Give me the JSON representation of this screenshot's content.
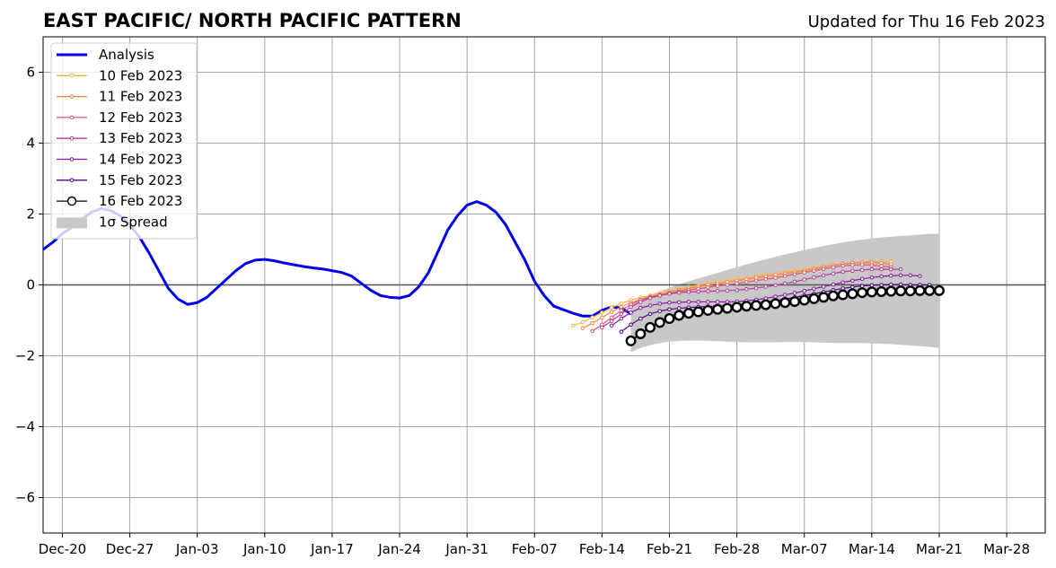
{
  "chart_data": {
    "type": "line",
    "title": "EAST PACIFIC/ NORTH PACIFIC PATTERN",
    "updated_label": "Updated for Thu 16 Feb 2023",
    "xlabel": "",
    "ylabel": "",
    "x_start_date": "2022-12-18",
    "x_end_date": "2023-04-01",
    "ylim": [
      -7,
      7
    ],
    "x_ticks": [
      {
        "date": "2022-12-20",
        "label": "Dec-20"
      },
      {
        "date": "2022-12-27",
        "label": "Dec-27"
      },
      {
        "date": "2023-01-03",
        "label": "Jan-03"
      },
      {
        "date": "2023-01-10",
        "label": "Jan-10"
      },
      {
        "date": "2023-01-17",
        "label": "Jan-17"
      },
      {
        "date": "2023-01-24",
        "label": "Jan-24"
      },
      {
        "date": "2023-01-31",
        "label": "Jan-31"
      },
      {
        "date": "2023-02-07",
        "label": "Feb-07"
      },
      {
        "date": "2023-02-14",
        "label": "Feb-14"
      },
      {
        "date": "2023-02-21",
        "label": "Feb-21"
      },
      {
        "date": "2023-02-28",
        "label": "Feb-28"
      },
      {
        "date": "2023-03-07",
        "label": "Mar-07"
      },
      {
        "date": "2023-03-14",
        "label": "Mar-14"
      },
      {
        "date": "2023-03-21",
        "label": "Mar-21"
      },
      {
        "date": "2023-03-28",
        "label": "Mar-28"
      }
    ],
    "y_ticks": [
      {
        "value": 6,
        "label": "6"
      },
      {
        "value": 4,
        "label": "4"
      },
      {
        "value": 2,
        "label": "2"
      },
      {
        "value": 0,
        "label": "0"
      },
      {
        "value": -2,
        "label": "−2"
      },
      {
        "value": -4,
        "label": "−4"
      },
      {
        "value": -6,
        "label": "−6"
      }
    ],
    "grid": true,
    "zero_line": true,
    "legend": {
      "placement": "top-left"
    },
    "analysis": {
      "name": "Analysis",
      "color": "#0000ee",
      "start_date": "2022-12-18",
      "values": [
        1.0,
        1.2,
        1.45,
        1.62,
        1.85,
        2.05,
        2.15,
        2.1,
        1.95,
        1.7,
        1.35,
        0.9,
        0.4,
        -0.1,
        -0.4,
        -0.55,
        -0.5,
        -0.35,
        -0.1,
        0.15,
        0.4,
        0.6,
        0.7,
        0.72,
        0.68,
        0.62,
        0.57,
        0.52,
        0.48,
        0.45,
        0.4,
        0.35,
        0.25,
        0.05,
        -0.15,
        -0.3,
        -0.35,
        -0.37,
        -0.3,
        -0.05,
        0.35,
        0.95,
        1.55,
        1.95,
        2.25,
        2.35,
        2.25,
        2.05,
        1.7,
        1.2,
        0.7,
        0.1,
        -0.3,
        -0.6,
        -0.7,
        -0.8,
        -0.88,
        -0.88,
        -0.72,
        -0.62,
        -0.65,
        -0.82
      ]
    },
    "forecasts": [
      {
        "name": "10 Feb 2023",
        "color": "#fbb33e",
        "start_date": "2023-02-11",
        "values": [
          -1.15,
          -1.05,
          -0.92,
          -0.78,
          -0.64,
          -0.52,
          -0.43,
          -0.36,
          -0.3,
          -0.24,
          -0.18,
          -0.12,
          -0.06,
          -0.01,
          0.04,
          0.08,
          0.12,
          0.16,
          0.2,
          0.24,
          0.28,
          0.32,
          0.36,
          0.4,
          0.44,
          0.48,
          0.52,
          0.56,
          0.6,
          0.63,
          0.65,
          0.66,
          0.66,
          0.65
        ]
      },
      {
        "name": "11 Feb 2023",
        "color": "#f5824b",
        "start_date": "2023-02-12",
        "values": [
          -1.22,
          -1.08,
          -0.92,
          -0.76,
          -0.62,
          -0.5,
          -0.41,
          -0.33,
          -0.27,
          -0.21,
          -0.15,
          -0.1,
          -0.05,
          0.0,
          0.04,
          0.08,
          0.12,
          0.16,
          0.2,
          0.24,
          0.28,
          0.32,
          0.36,
          0.4,
          0.45,
          0.5,
          0.55,
          0.59,
          0.62,
          0.63,
          0.63,
          0.62,
          0.58
        ]
      },
      {
        "name": "12 Feb 2023",
        "color": "#e0567a",
        "start_date": "2023-02-13",
        "values": [
          -1.3,
          -1.12,
          -0.92,
          -0.72,
          -0.55,
          -0.43,
          -0.35,
          -0.29,
          -0.24,
          -0.19,
          -0.15,
          -0.11,
          -0.07,
          -0.03,
          0.0,
          0.04,
          0.08,
          0.12,
          0.16,
          0.2,
          0.25,
          0.3,
          0.35,
          0.4,
          0.45,
          0.5,
          0.54,
          0.56,
          0.57,
          0.56,
          0.53,
          0.5
        ]
      },
      {
        "name": "13 Feb 2023",
        "color": "#b83a9a",
        "start_date": "2023-02-14",
        "values": [
          -1.2,
          -1.02,
          -0.82,
          -0.62,
          -0.48,
          -0.37,
          -0.3,
          -0.25,
          -0.22,
          -0.2,
          -0.19,
          -0.18,
          -0.17,
          -0.16,
          -0.15,
          -0.12,
          -0.09,
          -0.05,
          -0.01,
          0.04,
          0.09,
          0.15,
          0.21,
          0.27,
          0.32,
          0.37,
          0.4,
          0.42,
          0.44,
          0.44,
          0.44,
          0.44
        ]
      },
      {
        "name": "14 Feb 2023",
        "color": "#8c15a8",
        "start_date": "2023-02-15",
        "values": [
          -1.15,
          -0.95,
          -0.78,
          -0.65,
          -0.58,
          -0.53,
          -0.5,
          -0.49,
          -0.48,
          -0.48,
          -0.48,
          -0.48,
          -0.48,
          -0.47,
          -0.45,
          -0.42,
          -0.38,
          -0.33,
          -0.28,
          -0.23,
          -0.17,
          -0.11,
          -0.05,
          0.01,
          0.07,
          0.12,
          0.17,
          0.21,
          0.24,
          0.26,
          0.27,
          0.27,
          0.25
        ]
      },
      {
        "name": "15 Feb 2023",
        "color": "#55008c",
        "start_date": "2023-02-16",
        "values": [
          -1.32,
          -1.12,
          -0.95,
          -0.82,
          -0.74,
          -0.69,
          -0.66,
          -0.64,
          -0.62,
          -0.61,
          -0.6,
          -0.59,
          -0.57,
          -0.55,
          -0.52,
          -0.48,
          -0.44,
          -0.4,
          -0.35,
          -0.3,
          -0.25,
          -0.2,
          -0.15,
          -0.1,
          -0.06,
          -0.03,
          -0.01,
          0.0,
          0.01,
          0.01,
          0.0,
          0.0,
          0.0
        ]
      },
      {
        "name": "16 Feb 2023",
        "color": "#000000",
        "start_date": "2023-02-17",
        "values": [
          -1.58,
          -1.38,
          -1.2,
          -1.06,
          -0.95,
          -0.86,
          -0.8,
          -0.76,
          -0.72,
          -0.69,
          -0.66,
          -0.63,
          -0.6,
          -0.58,
          -0.56,
          -0.53,
          -0.5,
          -0.47,
          -0.43,
          -0.39,
          -0.35,
          -0.31,
          -0.28,
          -0.25,
          -0.22,
          -0.2,
          -0.19,
          -0.18,
          -0.17,
          -0.17,
          -0.16,
          -0.16,
          -0.16
        ]
      }
    ],
    "spread": {
      "name": "1σ Spread",
      "color": "#c8c8c8",
      "start_date": "2023-02-17",
      "upper": [
        -0.55,
        -0.4,
        -0.28,
        -0.18,
        -0.08,
        0.02,
        0.1,
        0.18,
        0.26,
        0.34,
        0.42,
        0.5,
        0.58,
        0.65,
        0.72,
        0.79,
        0.86,
        0.92,
        0.98,
        1.04,
        1.1,
        1.15,
        1.2,
        1.24,
        1.28,
        1.31,
        1.34,
        1.36,
        1.38,
        1.4,
        1.42,
        1.44,
        1.44
      ],
      "lower": [
        -1.9,
        -1.78,
        -1.7,
        -1.64,
        -1.6,
        -1.58,
        -1.57,
        -1.57,
        -1.58,
        -1.59,
        -1.6,
        -1.61,
        -1.62,
        -1.62,
        -1.62,
        -1.62,
        -1.61,
        -1.61,
        -1.61,
        -1.62,
        -1.63,
        -1.64,
        -1.64,
        -1.64,
        -1.64,
        -1.65,
        -1.66,
        -1.67,
        -1.69,
        -1.71,
        -1.73,
        -1.75,
        -1.78
      ]
    }
  }
}
